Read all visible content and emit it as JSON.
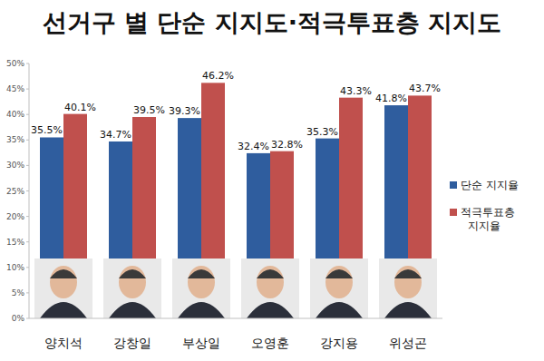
{
  "chart_data": {
    "type": "bar",
    "title": "선거구 별 단순 지지도·적극투표층 지지도",
    "categories": [
      "양치석",
      "강창일",
      "부상일",
      "오영훈",
      "강지용",
      "위성곤"
    ],
    "series": [
      {
        "name": "단순 지지율",
        "color": "#2f5d9e",
        "values": [
          35.5,
          34.7,
          39.3,
          32.4,
          35.3,
          41.8
        ],
        "value_labels": [
          "35.5%",
          "34.7%",
          "39.3%",
          "32.4%",
          "35.3%",
          "41.8%"
        ]
      },
      {
        "name": "적극투표층 지지율",
        "color": "#c0504d",
        "values": [
          40.1,
          39.5,
          46.2,
          32.8,
          43.3,
          43.7
        ],
        "value_labels": [
          "40.1%",
          "39.5%",
          "46.2%",
          "32.8%",
          "43.3%",
          "43.7%"
        ]
      }
    ],
    "ylim": [
      0,
      50
    ],
    "yticks": [
      {
        "value": 0,
        "label": "0%"
      },
      {
        "value": 5,
        "label": "5%"
      },
      {
        "value": 10,
        "label": "10%"
      },
      {
        "value": 15,
        "label": "15%"
      },
      {
        "value": 20,
        "label": "20%"
      },
      {
        "value": 25,
        "label": "25%"
      },
      {
        "value": 30,
        "label": "30%"
      },
      {
        "value": 35,
        "label": "35%"
      },
      {
        "value": 40,
        "label": "40%"
      },
      {
        "value": 45,
        "label": "45%"
      },
      {
        "value": 50,
        "label": "50%"
      }
    ],
    "grid": false,
    "legend": "right",
    "data_labels": true
  }
}
